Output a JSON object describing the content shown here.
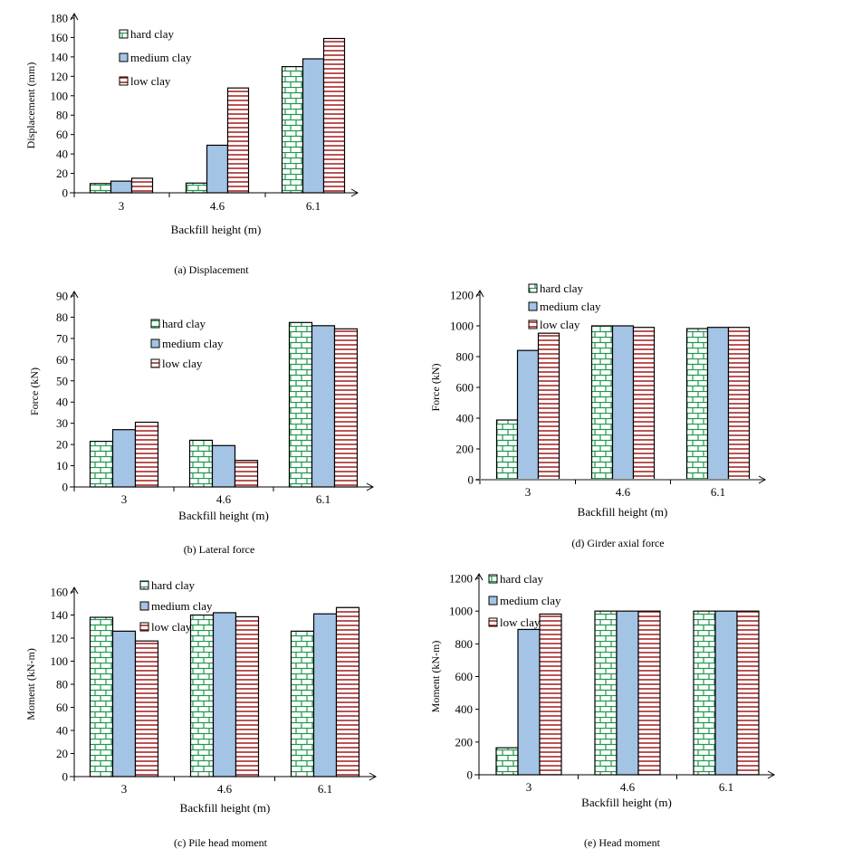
{
  "colors": {
    "hard_clay_stroke": "#1a9a4a",
    "medium_clay_fill": "#a4c4e6",
    "low_clay_stroke": "#a31b1b",
    "axis": "#000000"
  },
  "chart_data": [
    {
      "id": "a",
      "type": "bar",
      "title": "(a) Displacement",
      "xlabel": "Backfill height (m)",
      "ylabel": "Displacement (mm)",
      "categories": [
        "3",
        "4.6",
        "6.1"
      ],
      "ylim": [
        0,
        180
      ],
      "yticks": [
        0,
        20,
        40,
        60,
        80,
        100,
        120,
        140,
        160,
        180
      ],
      "legend": "top-left",
      "series": [
        {
          "name": "hard clay",
          "values": [
            9.5,
            10,
            130
          ]
        },
        {
          "name": "medium clay",
          "values": [
            12,
            49,
            138
          ]
        },
        {
          "name": "low clay",
          "values": [
            15,
            108,
            159
          ]
        }
      ]
    },
    {
      "id": "b",
      "type": "bar",
      "title": "(b) Lateral force",
      "xlabel": "Backfill height (m)",
      "ylabel": "Force (kN)",
      "categories": [
        "3",
        "4.6",
        "6.1"
      ],
      "ylim": [
        0,
        90
      ],
      "yticks": [
        0,
        10,
        20,
        30,
        40,
        50,
        60,
        70,
        80,
        90
      ],
      "legend": "top-center",
      "series": [
        {
          "name": "hard clay",
          "values": [
            21.5,
            22,
            77.5
          ]
        },
        {
          "name": "medium clay",
          "values": [
            27,
            19.5,
            76
          ]
        },
        {
          "name": "low clay",
          "values": [
            30.5,
            12.5,
            74.5
          ]
        }
      ]
    },
    {
      "id": "c",
      "type": "bar",
      "title": "(c) Pile head moment",
      "xlabel": "Backfill height (m)",
      "ylabel": "Moment (kN-m)",
      "categories": [
        "3",
        "4.6",
        "6.1"
      ],
      "ylim": [
        0,
        160
      ],
      "yticks": [
        0,
        20,
        40,
        60,
        80,
        100,
        120,
        140,
        160
      ],
      "legend": "top-center",
      "series": [
        {
          "name": "hard clay",
          "values": [
            138,
            140,
            126
          ]
        },
        {
          "name": "medium clay",
          "values": [
            126,
            142,
            141
          ]
        },
        {
          "name": "low clay",
          "values": [
            117.5,
            138.5,
            146.5
          ]
        }
      ]
    },
    {
      "id": "d",
      "type": "bar",
      "title": "(d) Girder axial force",
      "xlabel": "Backfill height (m)",
      "ylabel": "Force (kN)",
      "categories": [
        "3",
        "4.6",
        "6.1"
      ],
      "ylim": [
        0,
        1200
      ],
      "yticks": [
        0,
        200,
        400,
        600,
        800,
        1000,
        1200
      ],
      "legend": "top-left",
      "series": [
        {
          "name": "hard clay",
          "values": [
            388,
            1000,
            982
          ]
        },
        {
          "name": "medium clay",
          "values": [
            840,
            1000,
            990
          ]
        },
        {
          "name": "low clay",
          "values": [
            952,
            990,
            990
          ]
        }
      ]
    },
    {
      "id": "e",
      "type": "bar",
      "title": "(e) Head moment",
      "xlabel": "Backfill height (m)",
      "ylabel": "Moment (kN-m)",
      "categories": [
        "3",
        "4.6",
        "6.1"
      ],
      "ylim": [
        0,
        1200
      ],
      "yticks": [
        0,
        200,
        400,
        600,
        800,
        1000,
        1200
      ],
      "legend": "top-left",
      "series": [
        {
          "name": "hard clay",
          "values": [
            165,
            1000,
            1000
          ]
        },
        {
          "name": "medium clay",
          "values": [
            888,
            1000,
            1000
          ]
        },
        {
          "name": "low clay",
          "values": [
            982,
            1000,
            1000
          ]
        }
      ]
    }
  ]
}
